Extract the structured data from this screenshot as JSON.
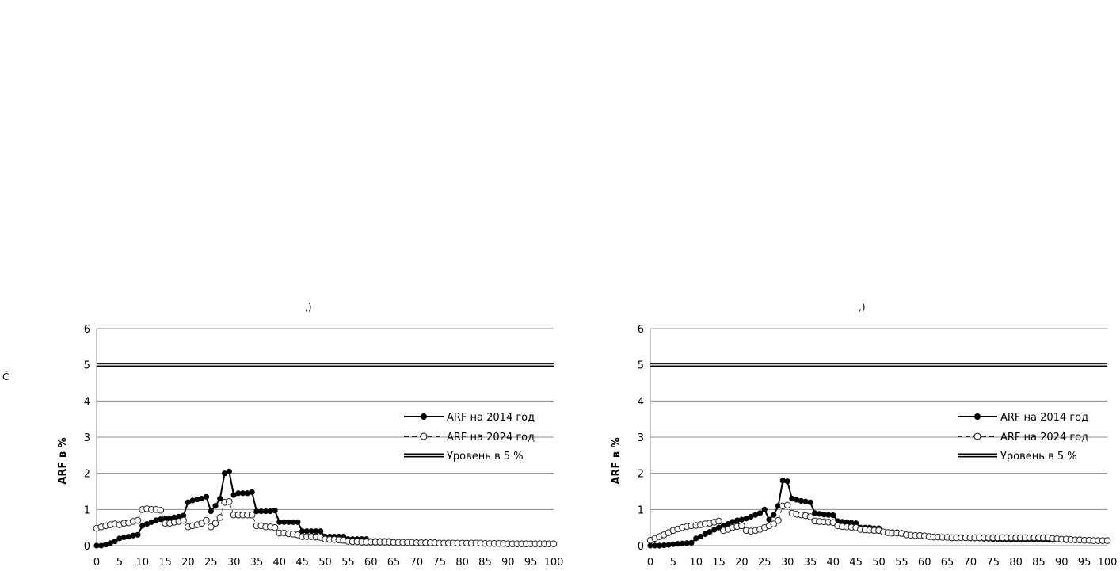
{
  "chart_data": [
    {
      "type": "line",
      "title": "",
      "xlabel": "",
      "ylabel": "ARF в %",
      "xlim": [
        0,
        100
      ],
      "ylim": [
        0,
        6
      ],
      "x_ticks": [
        "0",
        "5",
        "10",
        "15",
        "20",
        "25",
        "30",
        "35",
        "40",
        "45",
        "50",
        "55",
        "60",
        "65",
        "70",
        "75",
        "80",
        "85",
        "90",
        "95",
        "100"
      ],
      "y_ticks": [
        "0",
        "1",
        "2",
        "3",
        "4",
        "5",
        "6"
      ],
      "grid": true,
      "legend_position": "right",
      "series": [
        {
          "name": "ARF на 2014 год",
          "style": "solid-filled",
          "x": [
            0,
            1,
            2,
            3,
            4,
            5,
            6,
            7,
            8,
            9,
            10,
            11,
            12,
            13,
            14,
            15,
            16,
            17,
            18,
            19,
            20,
            21,
            22,
            23,
            24,
            25,
            26,
            27,
            28,
            29,
            30,
            31,
            32,
            33,
            34,
            35,
            36,
            37,
            38,
            39,
            40,
            41,
            42,
            43,
            44,
            45,
            46,
            47,
            48,
            49,
            50,
            51,
            52,
            53,
            54,
            55,
            56,
            57,
            58,
            59,
            60,
            61,
            62,
            63,
            64,
            65,
            66,
            67,
            68,
            69,
            70,
            71,
            72,
            73,
            74,
            75,
            76,
            77,
            78,
            79,
            80,
            81,
            82,
            83,
            84,
            85,
            86,
            87,
            88,
            89,
            90,
            91,
            92,
            93,
            94,
            95,
            96,
            97,
            98,
            99,
            100
          ],
          "y": [
            0,
            0,
            0.03,
            0.07,
            0.12,
            0.2,
            0.23,
            0.25,
            0.28,
            0.3,
            0.55,
            0.6,
            0.65,
            0.7,
            0.73,
            0.75,
            0.75,
            0.78,
            0.8,
            0.83,
            1.2,
            1.25,
            1.28,
            1.3,
            1.35,
            0.95,
            1.1,
            1.3,
            2,
            2.05,
            1.4,
            1.45,
            1.45,
            1.45,
            1.48,
            0.95,
            0.95,
            0.95,
            0.95,
            0.97,
            0.65,
            0.65,
            0.65,
            0.65,
            0.65,
            0.4,
            0.4,
            0.4,
            0.4,
            0.4,
            0.25,
            0.25,
            0.25,
            0.25,
            0.25,
            0.18,
            0.18,
            0.18,
            0.18,
            0.18,
            0.13,
            0.13,
            0.13,
            0.13,
            0.13,
            0.1,
            0.1,
            0.1,
            0.1,
            0.1,
            0.08,
            0.08,
            0.08,
            0.08,
            0.08,
            0.07,
            0.07,
            0.07,
            0.07,
            0.07,
            0.07,
            0.07,
            0.07,
            0.07,
            0.07,
            0.06,
            0.06,
            0.06,
            0.06,
            0.06,
            0.05,
            0.05,
            0.05,
            0.05,
            0.05,
            0.05,
            0.05,
            0.05,
            0.05,
            0.05,
            0.05
          ]
        },
        {
          "name": "ARF на 2024 год",
          "style": "dashed-open",
          "x": [
            0,
            1,
            2,
            3,
            4,
            5,
            6,
            7,
            8,
            9,
            10,
            11,
            12,
            13,
            14,
            15,
            16,
            17,
            18,
            19,
            20,
            21,
            22,
            23,
            24,
            25,
            26,
            27,
            28,
            29,
            30,
            31,
            32,
            33,
            34,
            35,
            36,
            37,
            38,
            39,
            40,
            41,
            42,
            43,
            44,
            45,
            46,
            47,
            48,
            49,
            50,
            51,
            52,
            53,
            54,
            55,
            56,
            57,
            58,
            59,
            60,
            61,
            62,
            63,
            64,
            65,
            66,
            67,
            68,
            69,
            70,
            71,
            72,
            73,
            74,
            75,
            76,
            77,
            78,
            79,
            80,
            81,
            82,
            83,
            84,
            85,
            86,
            87,
            88,
            89,
            90,
            91,
            92,
            93,
            94,
            95,
            96,
            97,
            98,
            99,
            100
          ],
          "y": [
            0.48,
            0.52,
            0.55,
            0.58,
            0.6,
            0.58,
            0.62,
            0.63,
            0.67,
            0.7,
            1,
            1.02,
            1,
            1,
            0.98,
            0.62,
            0.62,
            0.65,
            0.67,
            0.7,
            0.52,
            0.55,
            0.58,
            0.62,
            0.7,
            0.52,
            0.62,
            0.78,
            1.2,
            1.22,
            0.85,
            0.85,
            0.85,
            0.85,
            0.85,
            0.55,
            0.55,
            0.52,
            0.52,
            0.5,
            0.35,
            0.35,
            0.33,
            0.32,
            0.3,
            0.25,
            0.25,
            0.25,
            0.24,
            0.23,
            0.18,
            0.17,
            0.17,
            0.16,
            0.15,
            0.12,
            0.11,
            0.11,
            0.1,
            0.1,
            0.1,
            0.1,
            0.1,
            0.1,
            0.1,
            0.09,
            0.09,
            0.09,
            0.09,
            0.09,
            0.08,
            0.08,
            0.08,
            0.08,
            0.08,
            0.07,
            0.07,
            0.07,
            0.07,
            0.07,
            0.07,
            0.07,
            0.07,
            0.07,
            0.07,
            0.06,
            0.06,
            0.06,
            0.06,
            0.06,
            0.05,
            0.05,
            0.05,
            0.05,
            0.05,
            0.05,
            0.05,
            0.05,
            0.05,
            0.05,
            0.05
          ]
        },
        {
          "name": "Уровень в 5 %",
          "style": "double-line",
          "x": [
            0,
            100
          ],
          "y": [
            5,
            5
          ]
        }
      ]
    },
    {
      "type": "line",
      "title": "",
      "xlabel": "",
      "ylabel": "ARF в %",
      "xlim": [
        0,
        100
      ],
      "ylim": [
        0,
        6
      ],
      "x_ticks": [
        "0",
        "5",
        "10",
        "15",
        "20",
        "25",
        "30",
        "35",
        "40",
        "45",
        "50",
        "55",
        "60",
        "65",
        "70",
        "75",
        "80",
        "85",
        "90",
        "95",
        "100"
      ],
      "y_ticks": [
        "0",
        "1",
        "2",
        "3",
        "4",
        "5",
        "6"
      ],
      "grid": true,
      "legend_position": "right",
      "series": [
        {
          "name": "ARF на 2014 год",
          "style": "solid-filled",
          "x": [
            0,
            1,
            2,
            3,
            4,
            5,
            6,
            7,
            8,
            9,
            10,
            11,
            12,
            13,
            14,
            15,
            16,
            17,
            18,
            19,
            20,
            21,
            22,
            23,
            24,
            25,
            26,
            27,
            28,
            29,
            30,
            31,
            32,
            33,
            34,
            35,
            36,
            37,
            38,
            39,
            40,
            41,
            42,
            43,
            44,
            45,
            46,
            47,
            48,
            49,
            50,
            51,
            52,
            53,
            54,
            55,
            56,
            57,
            58,
            59,
            60,
            61,
            62,
            63,
            64,
            65,
            66,
            67,
            68,
            69,
            70,
            71,
            72,
            73,
            74,
            75,
            76,
            77,
            78,
            79,
            80,
            81,
            82,
            83,
            84,
            85,
            86,
            87,
            88,
            89,
            90,
            91,
            92,
            93,
            94,
            95,
            96,
            97,
            98,
            99,
            100
          ],
          "y": [
            0,
            0,
            0,
            0.01,
            0.02,
            0.04,
            0.05,
            0.06,
            0.07,
            0.08,
            0.2,
            0.25,
            0.32,
            0.38,
            0.44,
            0.5,
            0.55,
            0.6,
            0.66,
            0.7,
            0.72,
            0.75,
            0.8,
            0.85,
            0.9,
            1,
            0.72,
            0.85,
            1.1,
            1.8,
            1.78,
            1.3,
            1.27,
            1.24,
            1.22,
            1.2,
            0.9,
            0.88,
            0.86,
            0.85,
            0.84,
            0.68,
            0.66,
            0.65,
            0.63,
            0.62,
            0.5,
            0.5,
            0.5,
            0.48,
            0.48,
            0.38,
            0.37,
            0.37,
            0.37,
            0.35,
            0.3,
            0.3,
            0.29,
            0.29,
            0.28,
            0.25,
            0.25,
            0.24,
            0.24,
            0.23,
            0.22,
            0.22,
            0.21,
            0.21,
            0.2,
            0.2,
            0.2,
            0.19,
            0.19,
            0.18,
            0.18,
            0.18,
            0.17,
            0.17,
            0.17,
            0.17,
            0.17,
            0.17,
            0.17,
            0.17,
            0.17,
            0.17,
            0.16,
            0.16,
            0.16,
            0.15,
            0.15,
            0.15,
            0.15,
            0.14,
            0.14,
            0.13,
            0.13,
            0.13,
            0.13
          ]
        },
        {
          "name": "ARF на 2024 год",
          "style": "dashed-open",
          "x": [
            0,
            1,
            2,
            3,
            4,
            5,
            6,
            7,
            8,
            9,
            10,
            11,
            12,
            13,
            14,
            15,
            16,
            17,
            18,
            19,
            20,
            21,
            22,
            23,
            24,
            25,
            26,
            27,
            28,
            29,
            30,
            31,
            32,
            33,
            34,
            35,
            36,
            37,
            38,
            39,
            40,
            41,
            42,
            43,
            44,
            45,
            46,
            47,
            48,
            49,
            50,
            51,
            52,
            53,
            54,
            55,
            56,
            57,
            58,
            59,
            60,
            61,
            62,
            63,
            64,
            65,
            66,
            67,
            68,
            69,
            70,
            71,
            72,
            73,
            74,
            75,
            76,
            77,
            78,
            79,
            80,
            81,
            82,
            83,
            84,
            85,
            86,
            87,
            88,
            89,
            90,
            91,
            92,
            93,
            94,
            95,
            96,
            97,
            98,
            99,
            100
          ],
          "y": [
            0.15,
            0.2,
            0.25,
            0.3,
            0.36,
            0.42,
            0.46,
            0.5,
            0.53,
            0.55,
            0.56,
            0.58,
            0.6,
            0.62,
            0.65,
            0.68,
            0.42,
            0.45,
            0.5,
            0.53,
            0.55,
            0.42,
            0.4,
            0.42,
            0.45,
            0.5,
            0.55,
            0.6,
            0.7,
            1.1,
            1.12,
            0.9,
            0.87,
            0.85,
            0.83,
            0.8,
            0.68,
            0.67,
            0.66,
            0.65,
            0.64,
            0.55,
            0.53,
            0.52,
            0.51,
            0.5,
            0.45,
            0.44,
            0.43,
            0.42,
            0.42,
            0.38,
            0.36,
            0.35,
            0.35,
            0.34,
            0.3,
            0.29,
            0.28,
            0.28,
            0.27,
            0.25,
            0.24,
            0.24,
            0.23,
            0.23,
            0.22,
            0.22,
            0.22,
            0.22,
            0.22,
            0.22,
            0.22,
            0.22,
            0.22,
            0.22,
            0.22,
            0.22,
            0.22,
            0.22,
            0.22,
            0.22,
            0.22,
            0.22,
            0.22,
            0.22,
            0.22,
            0.22,
            0.2,
            0.19,
            0.18,
            0.18,
            0.17,
            0.16,
            0.16,
            0.15,
            0.15,
            0.14,
            0.14,
            0.14,
            0.14
          ]
        },
        {
          "name": "Уровень в 5 %",
          "style": "double-line",
          "x": [
            0,
            100
          ],
          "y": [
            5,
            5
          ]
        }
      ]
    }
  ],
  "fragments": {
    "left_panel_caption": ",)",
    "right_panel_caption": ",)",
    "side_glyph": "Ĉ"
  }
}
